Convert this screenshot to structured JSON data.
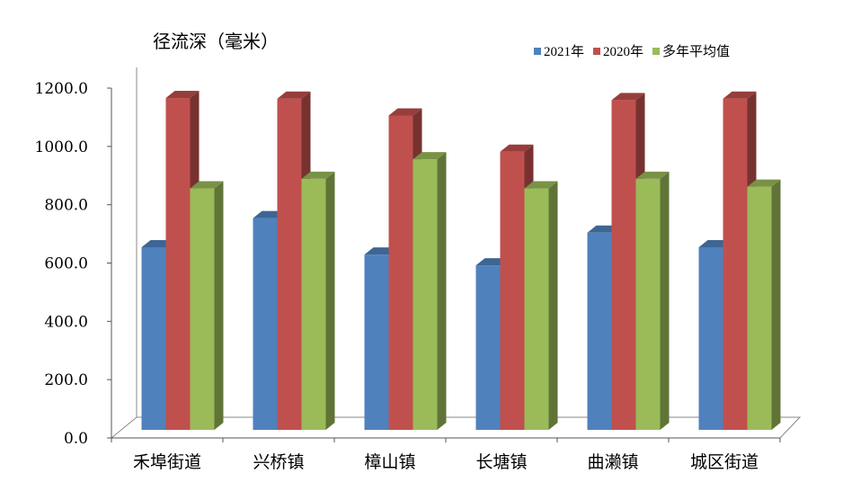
{
  "chart_data": {
    "type": "bar",
    "ylabel": "径流深（毫米）",
    "categories": [
      "禾埠街道",
      "兴桥镇",
      "樟山镇",
      "长塘镇",
      "曲濑镇",
      "城区街道"
    ],
    "series": [
      {
        "name": "2021年",
        "values": [
          620,
          720,
          595,
          558,
          670,
          620
        ],
        "color": "#4f81bd"
      },
      {
        "name": "2020年",
        "values": [
          1132,
          1130,
          1072,
          948,
          1125,
          1130
        ],
        "color": "#c0504d"
      },
      {
        "name": "多年平均值",
        "values": [
          822,
          855,
          922,
          822,
          855,
          828
        ],
        "color": "#9bbb59"
      }
    ],
    "ylim": [
      0,
      1200
    ],
    "yticks": [
      "0.0",
      "200.0",
      "400.0",
      "600.0",
      "800.0",
      "1000.0",
      "1200.0"
    ],
    "ytick_values": [
      0,
      200,
      400,
      600,
      800,
      1000,
      1200
    ],
    "legend_position": "top-right",
    "grid": false
  }
}
